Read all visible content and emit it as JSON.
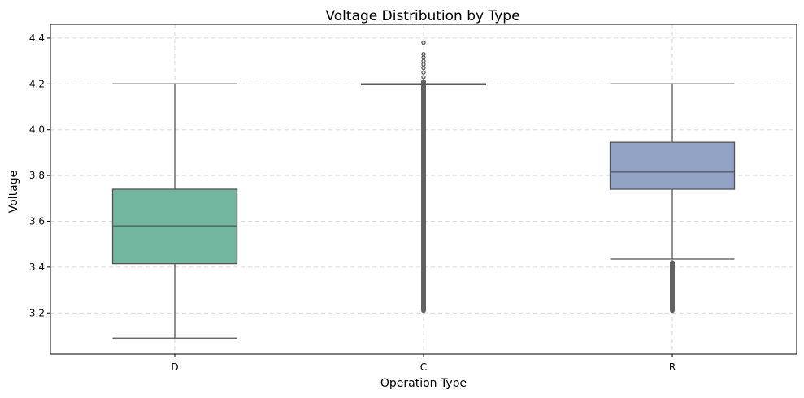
{
  "chart_data": {
    "type": "box",
    "title": "Voltage Distribution by Type",
    "xlabel": "Operation Type",
    "ylabel": "Voltage",
    "categories": [
      "D",
      "C",
      "R"
    ],
    "ylim": [
      3.02,
      4.46
    ],
    "yticks": [
      "3.2",
      "3.4",
      "3.6",
      "3.8",
      "4.0",
      "4.2",
      "4.4"
    ],
    "grid": true,
    "series": [
      {
        "category": "D",
        "whisker_low": 3.09,
        "q1": 3.415,
        "median": 3.58,
        "q3": 3.74,
        "whisker_high": 4.2,
        "color": "#73b6a0",
        "outliers": []
      },
      {
        "category": "C",
        "whisker_low": 4.198,
        "q1": 4.198,
        "median": 4.199,
        "q3": 4.2,
        "whisker_high": 4.2,
        "color": "#ee9974",
        "outlier_range_low": [
          3.2,
          4.22
        ],
        "outliers_high": [
          4.23,
          4.25,
          4.27,
          4.285,
          4.3,
          4.315,
          4.33,
          4.38
        ]
      },
      {
        "category": "R",
        "whisker_low": 3.435,
        "q1": 3.74,
        "median": 3.815,
        "q3": 3.945,
        "whisker_high": 4.2,
        "color": "#93a3c6",
        "outlier_range_low": [
          3.2,
          3.43
        ]
      }
    ]
  }
}
